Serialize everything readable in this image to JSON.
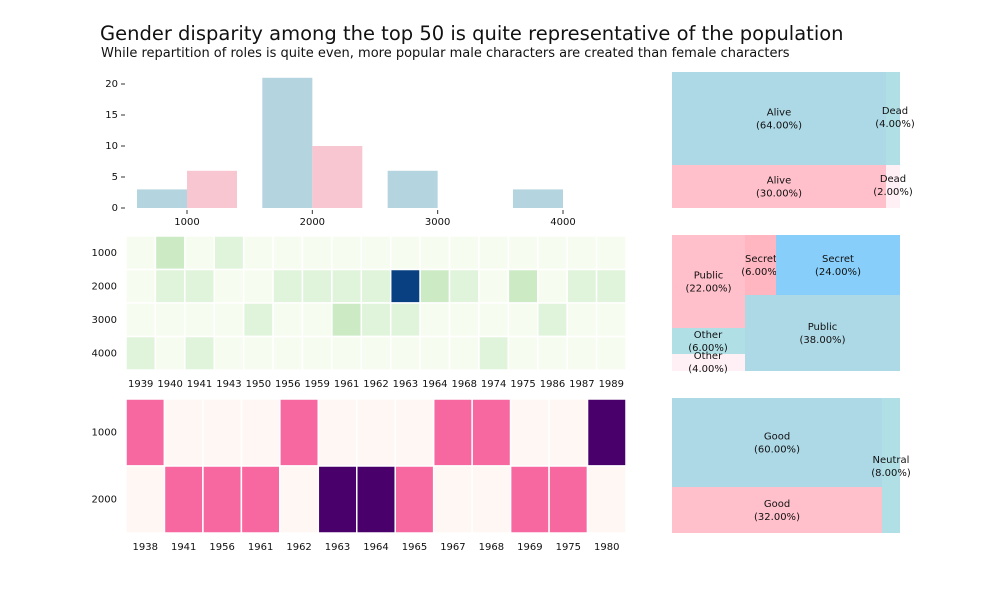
{
  "title": "Gender disparity among the top 50 is quite representative of the population",
  "subtitle": "While repartition of roles is quite even, more popular male characters are created than female characters",
  "colors": {
    "male": "#b4d4df",
    "female": "#f7c6d0",
    "treemap_male": "#add8e6",
    "treemap_female": "#ffc0cb",
    "treemap_teal": "#b0e0e6",
    "treemap_sky": "#87cefa",
    "treemap_pink2": "#ffb6c1",
    "treemap_lav": "#fff0f5"
  },
  "chart_data": [
    {
      "type": "bar",
      "categories": [
        "1000",
        "2000",
        "3000",
        "4000"
      ],
      "x_ticks": [
        "1000",
        "2000",
        "3000",
        "4000"
      ],
      "y_ticks": [
        "0",
        "5",
        "10",
        "15",
        "20"
      ],
      "ylim": [
        0,
        22
      ],
      "series": [
        {
          "values": [
            3,
            21,
            6,
            3
          ]
        },
        {
          "values": [
            6,
            10,
            0,
            0
          ]
        }
      ]
    },
    {
      "type": "heatmap",
      "columns": [
        "1939",
        "1940",
        "1941",
        "1943",
        "1950",
        "1956",
        "1959",
        "1961",
        "1962",
        "1963",
        "1964",
        "1968",
        "1974",
        "1975",
        "1986",
        "1987",
        "1989"
      ],
      "rows": [
        "1000",
        "2000",
        "3000",
        "4000"
      ],
      "values": [
        [
          0,
          2,
          0,
          1,
          0,
          0,
          0,
          0,
          0,
          0,
          0,
          0,
          0,
          0,
          0,
          0,
          0
        ],
        [
          0,
          1,
          1,
          0,
          0,
          1,
          1,
          1,
          1,
          10,
          2,
          1,
          0,
          2,
          0,
          1,
          1
        ],
        [
          0,
          0,
          0,
          0,
          1,
          0,
          0,
          2,
          1,
          1,
          0,
          0,
          0,
          0,
          1,
          0,
          0
        ],
        [
          1,
          0,
          1,
          0,
          0,
          0,
          0,
          0,
          0,
          0,
          0,
          0,
          1,
          0,
          0,
          0,
          0
        ]
      ]
    },
    {
      "type": "heatmap",
      "columns": [
        "1938",
        "1941",
        "1956",
        "1961",
        "1962",
        "1963",
        "1964",
        "1965",
        "1967",
        "1968",
        "1969",
        "1975",
        "1980"
      ],
      "rows": [
        "1000",
        "2000"
      ],
      "values": [
        [
          1,
          0,
          0,
          0,
          1,
          0,
          0,
          0,
          1,
          1,
          0,
          0,
          2
        ],
        [
          0,
          1,
          1,
          1,
          0,
          2,
          2,
          1,
          0,
          0,
          1,
          1,
          0
        ]
      ]
    },
    {
      "type": "treemap",
      "items": [
        {
          "label": "Alive",
          "pct": "(64.00%)",
          "value": 64,
          "color": "#add8e6"
        },
        {
          "label": "Dead",
          "pct": "(4.00%)",
          "value": 4,
          "color": "#b0e0e6"
        },
        {
          "label": "Alive",
          "pct": "(30.00%)",
          "value": 30,
          "color": "#ffc0cb"
        },
        {
          "label": "Dead",
          "pct": "(2.00%)",
          "value": 2,
          "color": "#fff0f5"
        }
      ]
    },
    {
      "type": "treemap",
      "items": [
        {
          "label": "Public",
          "pct": "(22.00%)",
          "value": 22,
          "color": "#ffc0cb"
        },
        {
          "label": "Secret",
          "pct": "(6.00%)",
          "value": 6,
          "color": "#ffb6c1"
        },
        {
          "label": "Secret",
          "pct": "(24.00%)",
          "value": 24,
          "color": "#87cefa"
        },
        {
          "label": "Other",
          "pct": "(6.00%)",
          "value": 6,
          "color": "#b0e0e6"
        },
        {
          "label": "Public",
          "pct": "(38.00%)",
          "value": 38,
          "color": "#add8e6"
        },
        {
          "label": "Other",
          "pct": "(4.00%)",
          "value": 4,
          "color": "#fff0f5"
        }
      ]
    },
    {
      "type": "treemap",
      "items": [
        {
          "label": "Good",
          "pct": "(60.00%)",
          "value": 60,
          "color": "#add8e6"
        },
        {
          "label": "Neutral",
          "pct": "(8.00%)",
          "value": 8,
          "color": "#b0e0e6"
        },
        {
          "label": "Good",
          "pct": "(32.00%)",
          "value": 32,
          "color": "#ffc0cb"
        }
      ]
    }
  ]
}
